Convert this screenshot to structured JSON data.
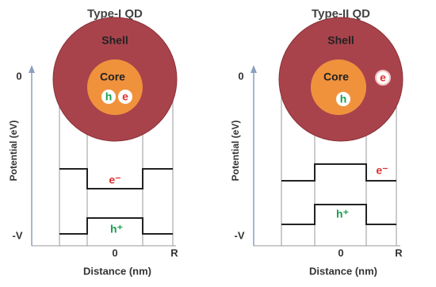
{
  "panels": [
    {
      "title": "Type-I QD",
      "shell": "Shell",
      "core": "Core",
      "hole": "h",
      "electron": "e",
      "y_axis_label": "Potential (eV)",
      "y_top": "0",
      "y_bottom": "-V",
      "x_zero": "0",
      "x_end": "R",
      "x_axis_label": "Distance (nm)",
      "electron_band_label": "e⁻",
      "hole_band_label": "h⁺"
    },
    {
      "title": "Type-II QD",
      "shell": "Shell",
      "core": "Core",
      "hole": "h",
      "electron": "e",
      "y_axis_label": "Potential (eV)",
      "y_top": "0",
      "y_bottom": "-V",
      "x_zero": "0",
      "x_end": "R",
      "x_axis_label": "Distance (nm)",
      "electron_band_label": "e⁻",
      "hole_band_label": "h⁺"
    }
  ]
}
